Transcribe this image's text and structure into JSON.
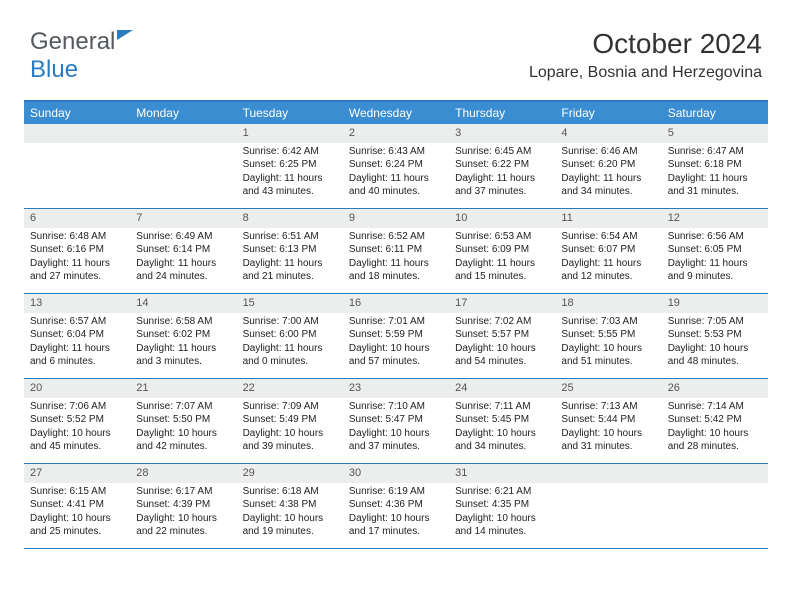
{
  "logo": {
    "text_gray": "General",
    "text_blue": "Blue"
  },
  "title": "October 2024",
  "subtitle": "Lopare, Bosnia and Herzegovina",
  "colors": {
    "header_bg": "#3a8dd0",
    "border": "#2b7bbf",
    "daynum_bg": "#eceded",
    "text": "#222222",
    "logo_gray": "#555a5f",
    "logo_blue": "#2b7bbf"
  },
  "day_headers": [
    "Sunday",
    "Monday",
    "Tuesday",
    "Wednesday",
    "Thursday",
    "Friday",
    "Saturday"
  ],
  "weeks": [
    [
      {
        "n": "",
        "sr": "",
        "ss": "",
        "dl": ""
      },
      {
        "n": "",
        "sr": "",
        "ss": "",
        "dl": ""
      },
      {
        "n": "1",
        "sr": "Sunrise: 6:42 AM",
        "ss": "Sunset: 6:25 PM",
        "dl": "Daylight: 11 hours and 43 minutes."
      },
      {
        "n": "2",
        "sr": "Sunrise: 6:43 AM",
        "ss": "Sunset: 6:24 PM",
        "dl": "Daylight: 11 hours and 40 minutes."
      },
      {
        "n": "3",
        "sr": "Sunrise: 6:45 AM",
        "ss": "Sunset: 6:22 PM",
        "dl": "Daylight: 11 hours and 37 minutes."
      },
      {
        "n": "4",
        "sr": "Sunrise: 6:46 AM",
        "ss": "Sunset: 6:20 PM",
        "dl": "Daylight: 11 hours and 34 minutes."
      },
      {
        "n": "5",
        "sr": "Sunrise: 6:47 AM",
        "ss": "Sunset: 6:18 PM",
        "dl": "Daylight: 11 hours and 31 minutes."
      }
    ],
    [
      {
        "n": "6",
        "sr": "Sunrise: 6:48 AM",
        "ss": "Sunset: 6:16 PM",
        "dl": "Daylight: 11 hours and 27 minutes."
      },
      {
        "n": "7",
        "sr": "Sunrise: 6:49 AM",
        "ss": "Sunset: 6:14 PM",
        "dl": "Daylight: 11 hours and 24 minutes."
      },
      {
        "n": "8",
        "sr": "Sunrise: 6:51 AM",
        "ss": "Sunset: 6:13 PM",
        "dl": "Daylight: 11 hours and 21 minutes."
      },
      {
        "n": "9",
        "sr": "Sunrise: 6:52 AM",
        "ss": "Sunset: 6:11 PM",
        "dl": "Daylight: 11 hours and 18 minutes."
      },
      {
        "n": "10",
        "sr": "Sunrise: 6:53 AM",
        "ss": "Sunset: 6:09 PM",
        "dl": "Daylight: 11 hours and 15 minutes."
      },
      {
        "n": "11",
        "sr": "Sunrise: 6:54 AM",
        "ss": "Sunset: 6:07 PM",
        "dl": "Daylight: 11 hours and 12 minutes."
      },
      {
        "n": "12",
        "sr": "Sunrise: 6:56 AM",
        "ss": "Sunset: 6:05 PM",
        "dl": "Daylight: 11 hours and 9 minutes."
      }
    ],
    [
      {
        "n": "13",
        "sr": "Sunrise: 6:57 AM",
        "ss": "Sunset: 6:04 PM",
        "dl": "Daylight: 11 hours and 6 minutes."
      },
      {
        "n": "14",
        "sr": "Sunrise: 6:58 AM",
        "ss": "Sunset: 6:02 PM",
        "dl": "Daylight: 11 hours and 3 minutes."
      },
      {
        "n": "15",
        "sr": "Sunrise: 7:00 AM",
        "ss": "Sunset: 6:00 PM",
        "dl": "Daylight: 11 hours and 0 minutes."
      },
      {
        "n": "16",
        "sr": "Sunrise: 7:01 AM",
        "ss": "Sunset: 5:59 PM",
        "dl": "Daylight: 10 hours and 57 minutes."
      },
      {
        "n": "17",
        "sr": "Sunrise: 7:02 AM",
        "ss": "Sunset: 5:57 PM",
        "dl": "Daylight: 10 hours and 54 minutes."
      },
      {
        "n": "18",
        "sr": "Sunrise: 7:03 AM",
        "ss": "Sunset: 5:55 PM",
        "dl": "Daylight: 10 hours and 51 minutes."
      },
      {
        "n": "19",
        "sr": "Sunrise: 7:05 AM",
        "ss": "Sunset: 5:53 PM",
        "dl": "Daylight: 10 hours and 48 minutes."
      }
    ],
    [
      {
        "n": "20",
        "sr": "Sunrise: 7:06 AM",
        "ss": "Sunset: 5:52 PM",
        "dl": "Daylight: 10 hours and 45 minutes."
      },
      {
        "n": "21",
        "sr": "Sunrise: 7:07 AM",
        "ss": "Sunset: 5:50 PM",
        "dl": "Daylight: 10 hours and 42 minutes."
      },
      {
        "n": "22",
        "sr": "Sunrise: 7:09 AM",
        "ss": "Sunset: 5:49 PM",
        "dl": "Daylight: 10 hours and 39 minutes."
      },
      {
        "n": "23",
        "sr": "Sunrise: 7:10 AM",
        "ss": "Sunset: 5:47 PM",
        "dl": "Daylight: 10 hours and 37 minutes."
      },
      {
        "n": "24",
        "sr": "Sunrise: 7:11 AM",
        "ss": "Sunset: 5:45 PM",
        "dl": "Daylight: 10 hours and 34 minutes."
      },
      {
        "n": "25",
        "sr": "Sunrise: 7:13 AM",
        "ss": "Sunset: 5:44 PM",
        "dl": "Daylight: 10 hours and 31 minutes."
      },
      {
        "n": "26",
        "sr": "Sunrise: 7:14 AM",
        "ss": "Sunset: 5:42 PM",
        "dl": "Daylight: 10 hours and 28 minutes."
      }
    ],
    [
      {
        "n": "27",
        "sr": "Sunrise: 6:15 AM",
        "ss": "Sunset: 4:41 PM",
        "dl": "Daylight: 10 hours and 25 minutes."
      },
      {
        "n": "28",
        "sr": "Sunrise: 6:17 AM",
        "ss": "Sunset: 4:39 PM",
        "dl": "Daylight: 10 hours and 22 minutes."
      },
      {
        "n": "29",
        "sr": "Sunrise: 6:18 AM",
        "ss": "Sunset: 4:38 PM",
        "dl": "Daylight: 10 hours and 19 minutes."
      },
      {
        "n": "30",
        "sr": "Sunrise: 6:19 AM",
        "ss": "Sunset: 4:36 PM",
        "dl": "Daylight: 10 hours and 17 minutes."
      },
      {
        "n": "31",
        "sr": "Sunrise: 6:21 AM",
        "ss": "Sunset: 4:35 PM",
        "dl": "Daylight: 10 hours and 14 minutes."
      },
      {
        "n": "",
        "sr": "",
        "ss": "",
        "dl": ""
      },
      {
        "n": "",
        "sr": "",
        "ss": "",
        "dl": ""
      }
    ]
  ]
}
